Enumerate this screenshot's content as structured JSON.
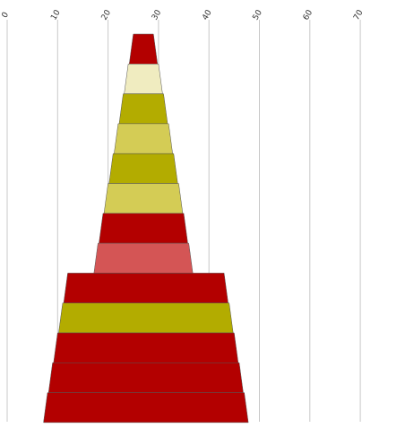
{
  "chart_data": {
    "type": "bar",
    "subtype": "funnel",
    "title": "",
    "xlabel": "",
    "ylabel": "",
    "xlim": [
      0,
      70
    ],
    "x_ticks": [
      "0",
      "10",
      "20",
      "30",
      "40",
      "50",
      "60",
      "70"
    ],
    "grid": true,
    "legend": "none",
    "orientation": "vertical-stack",
    "segments": [
      {
        "start": 25.0,
        "end": 29.0,
        "color": "#b30000"
      },
      {
        "start": 24.0,
        "end": 30.0,
        "color": "#f0ecc0"
      },
      {
        "start": 23.0,
        "end": 31.0,
        "color": "#b3ac00"
      },
      {
        "start": 22.0,
        "end": 32.0,
        "color": "#d4cc55"
      },
      {
        "start": 21.0,
        "end": 33.0,
        "color": "#b3ac00"
      },
      {
        "start": 20.0,
        "end": 34.0,
        "color": "#d4cc55"
      },
      {
        "start": 19.0,
        "end": 35.0,
        "color": "#b30000"
      },
      {
        "start": 18.0,
        "end": 36.0,
        "color": "#d45555"
      },
      {
        "start": 12.0,
        "end": 43.0,
        "color": "#b30000"
      },
      {
        "start": 11.0,
        "end": 44.0,
        "color": "#b3ac00"
      },
      {
        "start": 10.0,
        "end": 45.0,
        "color": "#b30000"
      },
      {
        "start": 9.0,
        "end": 46.0,
        "color": "#b30000"
      },
      {
        "start": 8.0,
        "end": 47.0,
        "color": "#b30000"
      }
    ]
  }
}
